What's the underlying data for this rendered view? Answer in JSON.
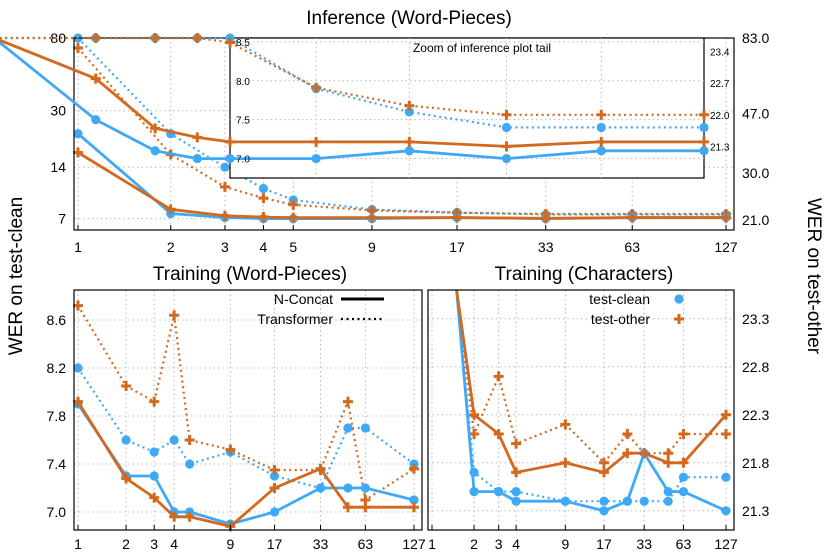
{
  "colors": {
    "clean": "#3fa9f5",
    "other": "#d2691e",
    "text": "#000000",
    "grid": "#b8b8b8"
  },
  "labels": {
    "ylabel_left": "WER on test-clean",
    "ylabel_right": "WER on test-other"
  },
  "chart_data": [
    {
      "id": "inference",
      "type": "line",
      "title": "Inference (Word-Pieces)",
      "xscale": "log2",
      "xticks": [
        "1",
        "2",
        "3",
        "4",
        "5",
        "9",
        "17",
        "33",
        "63",
        "127"
      ],
      "ylim_left": [
        6,
        80
      ],
      "ylim_right": [
        19.5,
        83
      ],
      "yticks_left": [
        "7",
        "14",
        "30",
        "80"
      ],
      "yticks_right": [
        "21.0",
        "30.0",
        "47.0",
        "83.0"
      ],
      "series": [
        {
          "metric": "test-clean",
          "model": "Transformer",
          "axis": "left",
          "x": [
            1,
            2,
            3,
            4,
            5,
            9,
            17,
            33,
            63,
            127
          ],
          "values": [
            80,
            22,
            14,
            10.5,
            9,
            7.9,
            7.6,
            7.4,
            7.4,
            7.4
          ]
        },
        {
          "metric": "test-other",
          "model": "Transformer",
          "axis": "right",
          "x": [
            1,
            2,
            3,
            4,
            5,
            9,
            17,
            33,
            63,
            127
          ],
          "values": [
            77,
            34.5,
            27,
            24.8,
            23.6,
            22.6,
            22.2,
            22.0,
            22.0,
            22.0
          ]
        },
        {
          "metric": "test-clean",
          "model": "N-Concat",
          "axis": "left",
          "x": [
            1,
            2,
            3,
            4,
            5,
            9,
            17,
            33,
            63,
            127
          ],
          "values": [
            22,
            7.5,
            7.1,
            7.0,
            7.0,
            7.0,
            7.1,
            7.0,
            7.1,
            7.1
          ]
        },
        {
          "metric": "test-other",
          "model": "N-Concat",
          "axis": "right",
          "x": [
            1,
            2,
            3,
            4,
            5,
            9,
            17,
            33,
            63,
            127
          ],
          "values": [
            35,
            22.8,
            21.7,
            21.5,
            21.4,
            21.4,
            21.4,
            21.3,
            21.4,
            21.4
          ]
        }
      ],
      "inset": {
        "title": "Zoom of inference plot tail",
        "ylim_left": [
          6.75,
          8.55
        ],
        "ylim_right": [
          20.6,
          23.7
        ],
        "yticks_left": [
          "7.0",
          "7.5",
          "8.0",
          "8.5"
        ],
        "yticks_right": [
          "21.3",
          "22.0",
          "22.7",
          "23.4"
        ],
        "x_start": 5,
        "x_end": 127
      }
    },
    {
      "id": "training-wp",
      "type": "line",
      "title": "Training (Word-Pieces)",
      "xscale": "log2",
      "xticks": [
        "1",
        "2",
        "3",
        "4",
        "9",
        "17",
        "33",
        "63",
        "127"
      ],
      "ylim": [
        6.85,
        8.85
      ],
      "yticks": [
        "7.0",
        "7.4",
        "7.8",
        "8.2",
        "8.6"
      ],
      "legend": [
        {
          "label": "N-Concat",
          "style": "solid"
        },
        {
          "label": "Transformer",
          "style": "dotted"
        }
      ],
      "series": [
        {
          "metric": "test-clean",
          "model": "Transformer",
          "x": [
            1,
            2,
            3,
            4,
            5,
            9,
            17,
            33,
            49,
            63,
            127
          ],
          "values": [
            8.2,
            7.6,
            7.5,
            7.6,
            7.4,
            7.5,
            7.3,
            7.2,
            7.7,
            7.7,
            7.4
          ]
        },
        {
          "metric": "test-other",
          "model": "Transformer",
          "x": [
            1,
            2,
            3,
            4,
            5,
            9,
            17,
            33,
            49,
            63,
            127
          ],
          "values": [
            8.72,
            8.05,
            7.92,
            8.64,
            7.6,
            7.52,
            7.35,
            7.35,
            7.92,
            7.1,
            7.36
          ]
        },
        {
          "metric": "test-clean",
          "model": "N-Concat",
          "x": [
            1,
            2,
            3,
            4,
            5,
            9,
            17,
            33,
            49,
            63,
            127
          ],
          "values": [
            7.9,
            7.3,
            7.3,
            7.0,
            7.0,
            6.9,
            7.0,
            7.2,
            7.2,
            7.2,
            7.1
          ]
        },
        {
          "metric": "test-other",
          "model": "N-Concat",
          "x": [
            1,
            2,
            3,
            4,
            5,
            9,
            17,
            33,
            49,
            63,
            127
          ],
          "values": [
            7.92,
            7.28,
            7.12,
            6.96,
            6.96,
            6.88,
            7.2,
            7.36,
            7.04,
            7.04,
            7.04
          ]
        }
      ]
    },
    {
      "id": "training-char",
      "type": "line",
      "title": "Training (Characters)",
      "xscale": "log2",
      "xticks": [
        "1",
        "2",
        "3",
        "4",
        "9",
        "17",
        "33",
        "63",
        "127"
      ],
      "ylim": [
        21.1,
        23.6
      ],
      "yticks": [
        "21.3",
        "21.8",
        "22.3",
        "22.8",
        "23.3"
      ],
      "legend": [
        {
          "label": "test-clean",
          "marker": "circle"
        },
        {
          "label": "test-other",
          "marker": "cross"
        }
      ],
      "series": [
        {
          "metric": "test-clean",
          "model": "Transformer",
          "x": [
            1.5,
            2,
            3,
            4,
            9,
            17,
            25,
            33,
            49,
            63,
            127
          ],
          "values": [
            23.6,
            21.7,
            21.5,
            21.5,
            21.4,
            21.4,
            21.4,
            21.4,
            21.4,
            21.65,
            21.65
          ]
        },
        {
          "metric": "test-other",
          "model": "Transformer",
          "x": [
            1.5,
            2,
            3,
            4,
            9,
            17,
            25,
            33,
            49,
            63,
            127
          ],
          "values": [
            23.6,
            22.1,
            22.7,
            22.0,
            22.2,
            21.8,
            22.1,
            21.9,
            21.9,
            22.1,
            22.1
          ]
        },
        {
          "metric": "test-clean",
          "model": "N-Concat",
          "x": [
            1.5,
            2,
            3,
            4,
            9,
            17,
            25,
            33,
            49,
            63,
            127
          ],
          "values": [
            23.6,
            21.5,
            21.5,
            21.4,
            21.4,
            21.3,
            21.4,
            21.9,
            21.5,
            21.5,
            21.3
          ]
        },
        {
          "metric": "test-other",
          "model": "N-Concat",
          "x": [
            1.5,
            2,
            3,
            4,
            9,
            17,
            25,
            33,
            49,
            63,
            127
          ],
          "values": [
            23.6,
            22.3,
            22.1,
            21.7,
            21.8,
            21.7,
            21.9,
            21.9,
            21.8,
            21.8,
            22.3
          ]
        }
      ]
    }
  ]
}
